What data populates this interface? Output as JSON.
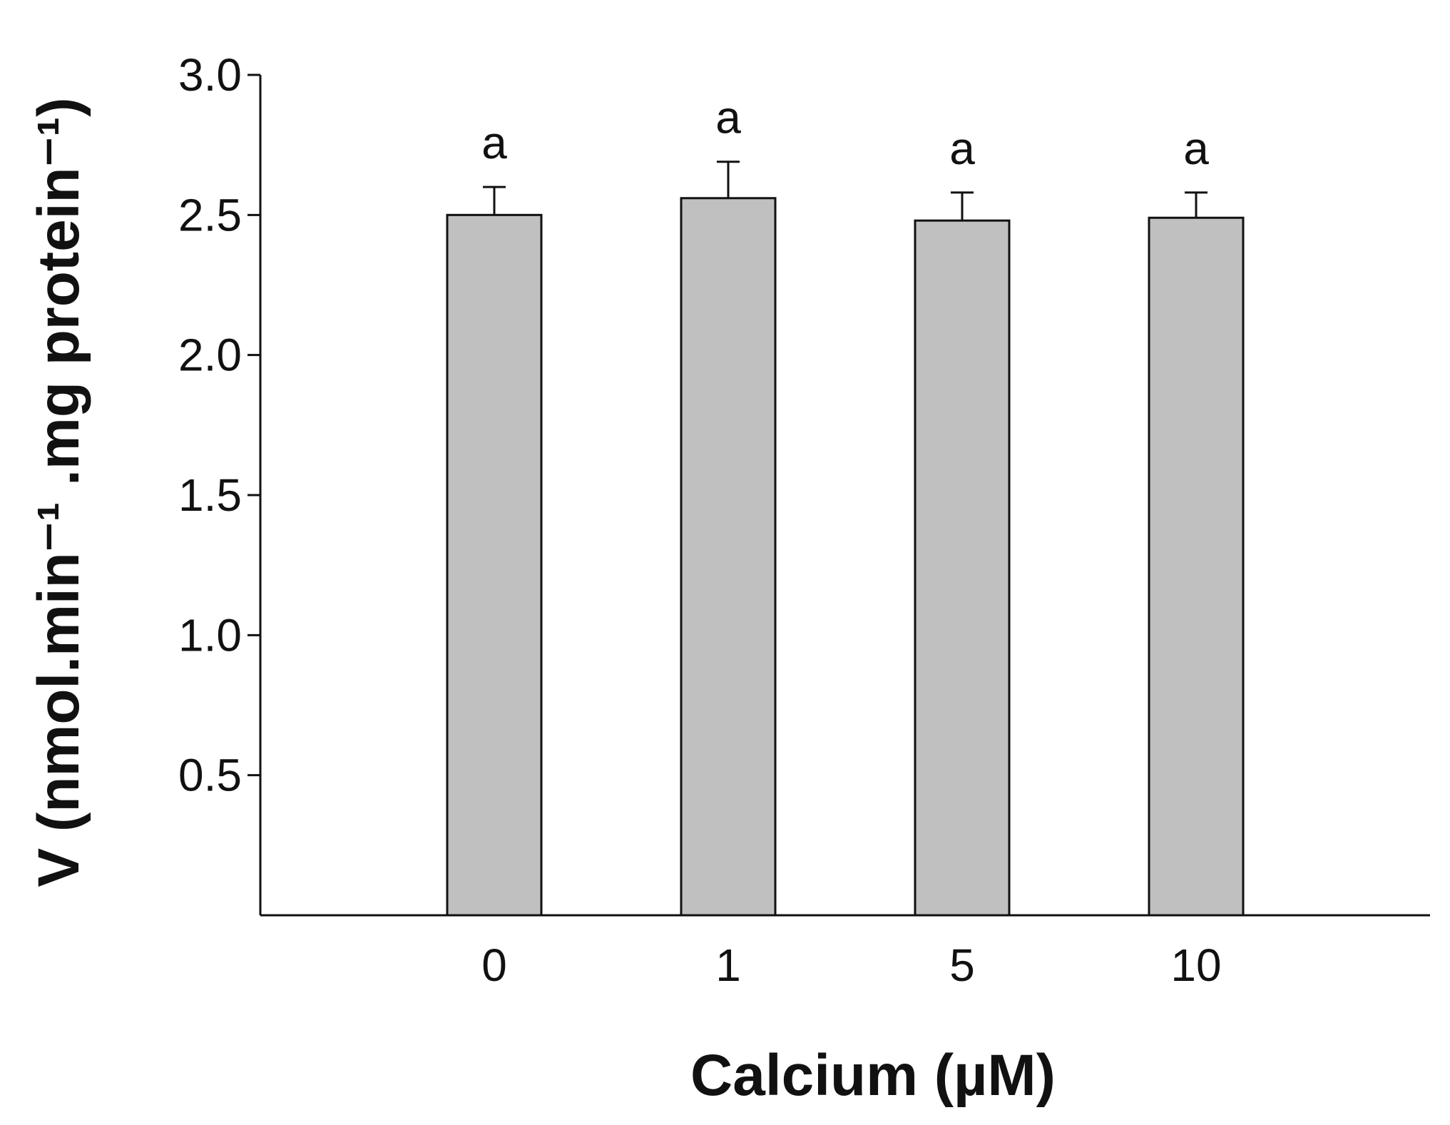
{
  "chart_data": {
    "type": "bar",
    "categories": [
      "0",
      "1",
      "5",
      "10"
    ],
    "values": [
      2.5,
      2.56,
      2.48,
      2.49
    ],
    "errors": [
      0.1,
      0.13,
      0.1,
      0.09
    ],
    "significance": [
      "a",
      "a",
      "a",
      "a"
    ],
    "xlabel": "Calcium (µM)",
    "ylabel": "V (nmol.min⁻¹ .mg protein⁻¹)",
    "ylim": [
      0,
      3.0
    ],
    "yticks": [
      0.5,
      1.0,
      1.5,
      2.0,
      2.5,
      3.0
    ],
    "ytick_labels": [
      "0.5",
      "1.0",
      "1.5",
      "2.0",
      "2.5",
      "3.0"
    ],
    "grid": false,
    "bar_color": "#c0c0c0",
    "edge_color": "#111111"
  }
}
